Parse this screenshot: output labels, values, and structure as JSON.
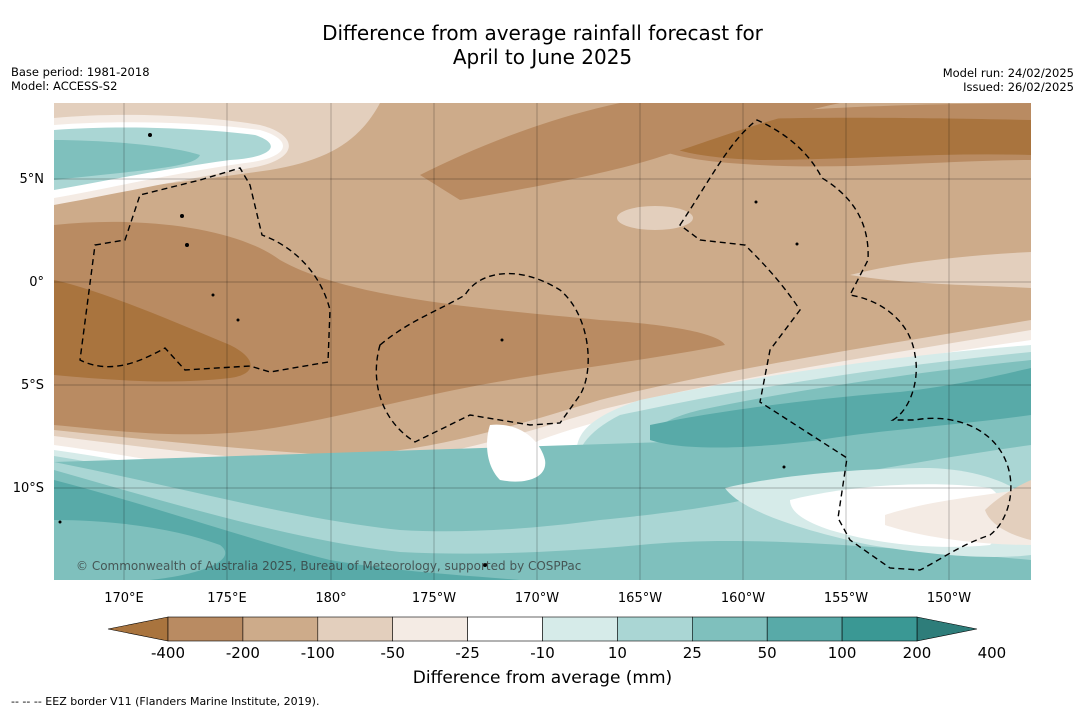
{
  "title_line1": "Difference from average rainfall forecast for",
  "title_line2": "April to June 2025",
  "base_period": "Base period: 1981-2018",
  "model": "Model: ACCESS-S2",
  "model_run": "Model run: 24/02/2025",
  "issued": "Issued: 26/02/2025",
  "copyright": "© Commonwealth of Australia 2025, Bureau of Meteorology, supported by COSPPac",
  "lat_labels": [
    "5°N",
    "0°",
    "5°S",
    "10°S"
  ],
  "lon_labels": [
    "170°E",
    "175°E",
    "180°",
    "175°W",
    "170°W",
    "165°W",
    "160°W",
    "155°W",
    "150°W"
  ],
  "colorbar": {
    "title": "Difference from average (mm)",
    "ticks": [
      "-400",
      "-200",
      "-100",
      "-50",
      "-25",
      "-10",
      "10",
      "25",
      "50",
      "100",
      "200",
      "400"
    ],
    "colors": [
      "#a9743e",
      "#b98b62",
      "#cdab8a",
      "#e3cfbd",
      "#f4ebe4",
      "#ffffff",
      "#d6ebe9",
      "#aad6d4",
      "#7fc0bd",
      "#58aaa8",
      "#3a9894",
      "#2e7d7a"
    ]
  },
  "footnote": "--  --  -- EEZ border V11 (Flanders Marine Institute, 2019).",
  "colors": {
    "dry_extreme": "#a9743e",
    "dry_high": "#b98b62",
    "dry_mid": "#cdab8a",
    "dry_low": "#e3cfbd",
    "dry_slight": "#f4ebe4",
    "neutral": "#ffffff",
    "wet_slight": "#d6ebe9",
    "wet_low": "#aad6d4",
    "wet_mid": "#7fc0bd",
    "wet_high": "#58aaa8"
  }
}
